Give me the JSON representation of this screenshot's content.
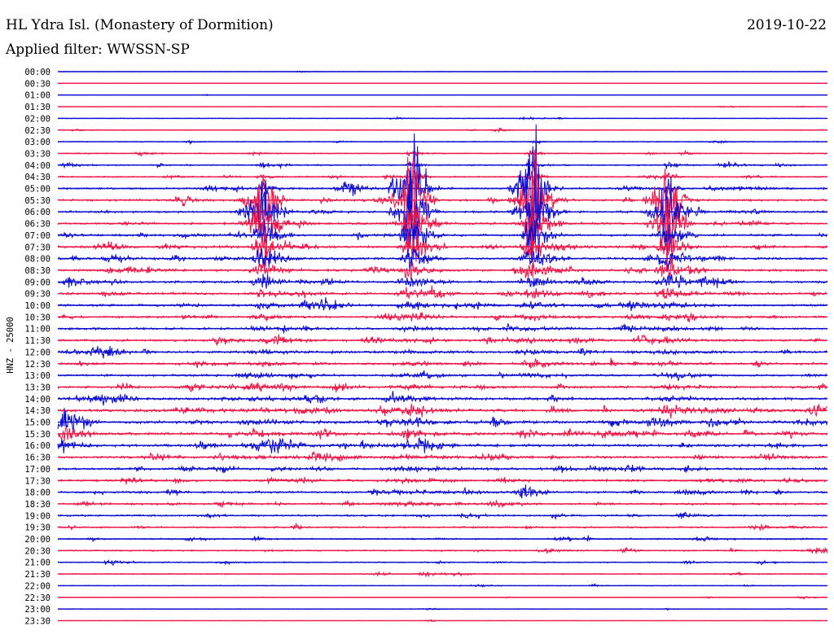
{
  "header": {
    "station": "HL Ydra Isl. (Monastery of Dormition)",
    "filter": "Applied filter: WWSSN-SP",
    "date": "2019-10-22",
    "channel_label": "HNZ - 25000"
  },
  "colors": {
    "trace_a": "#0a0ad2",
    "trace_b": "#f01446",
    "text": "#000000",
    "background": "#ffffff"
  },
  "chart_data": {
    "type": "line",
    "title": "HL Ydra Isl. (Monastery of Dormition)",
    "subtitle": "Applied filter: WWSSN-SP",
    "ylabel": "HNZ - 25000",
    "xlim": [
      0,
      30
    ],
    "series_colors": [
      "#0a0ad2",
      "#f01446"
    ],
    "rows": [
      "00:00",
      "00:30",
      "01:00",
      "01:30",
      "02:00",
      "02:30",
      "03:00",
      "03:30",
      "04:00",
      "04:30",
      "05:00",
      "05:30",
      "06:00",
      "06:30",
      "07:00",
      "07:30",
      "08:00",
      "08:30",
      "09:00",
      "09:30",
      "10:00",
      "10:30",
      "11:00",
      "11:30",
      "12:00",
      "12:30",
      "13:00",
      "13:30",
      "14:00",
      "14:30",
      "15:00",
      "15:30",
      "16:00",
      "16:30",
      "17:00",
      "17:30",
      "18:00",
      "18:30",
      "19:00",
      "19:30",
      "20:00",
      "20:30",
      "21:00",
      "21:30",
      "22:00",
      "22:30",
      "23:00",
      "23:30"
    ],
    "noise_level": [
      0.3,
      0.3,
      0.3,
      0.4,
      0.5,
      0.6,
      0.7,
      0.8,
      1.0,
      1.1,
      1.3,
      1.5,
      1.5,
      1.6,
      1.6,
      1.7,
      1.7,
      1.7,
      1.7,
      1.7,
      1.6,
      1.6,
      1.6,
      1.6,
      1.6,
      1.6,
      1.6,
      1.7,
      1.9,
      2.1,
      2.1,
      2.0,
      1.9,
      1.8,
      1.7,
      1.6,
      1.5,
      1.4,
      1.3,
      1.2,
      1.1,
      1.0,
      0.9,
      0.8,
      0.6,
      0.5,
      0.4,
      0.3
    ],
    "major_events": [
      {
        "start_row": 8,
        "end_row": 33,
        "minute": 8.0,
        "peak_row": 11,
        "amplitude": 95
      },
      {
        "start_row": 7,
        "end_row": 37,
        "minute": 13.8,
        "peak_row": 10,
        "amplitude": 140
      },
      {
        "start_row": 7,
        "end_row": 26,
        "minute": 18.5,
        "peak_row": 10,
        "amplitude": 125
      },
      {
        "start_row": 8,
        "end_row": 29,
        "minute": 23.8,
        "peak_row": 11,
        "amplitude": 110
      }
    ],
    "local_events": [
      {
        "row": 30,
        "minute": 0.3,
        "amplitude": 26
      },
      {
        "row": 31,
        "minute": 0.3,
        "amplitude": 18
      },
      {
        "row": 32,
        "minute": 0.3,
        "amplitude": 12
      },
      {
        "row": 10,
        "minute": 11.2,
        "amplitude": 14
      },
      {
        "row": 20,
        "minute": 9.8,
        "amplitude": 9
      },
      {
        "row": 32,
        "minute": 14.3,
        "amplitude": 12
      },
      {
        "row": 23,
        "minute": 22.8,
        "amplitude": 9
      },
      {
        "row": 18,
        "minute": 25.4,
        "amplitude": 12
      },
      {
        "row": 41,
        "minute": 29.7,
        "amplitude": 9
      },
      {
        "row": 29,
        "minute": 29.6,
        "amplitude": 10
      },
      {
        "row": 36,
        "minute": 18.2,
        "amplitude": 12
      },
      {
        "row": 42,
        "minute": 2.1,
        "amplitude": 6
      }
    ]
  }
}
